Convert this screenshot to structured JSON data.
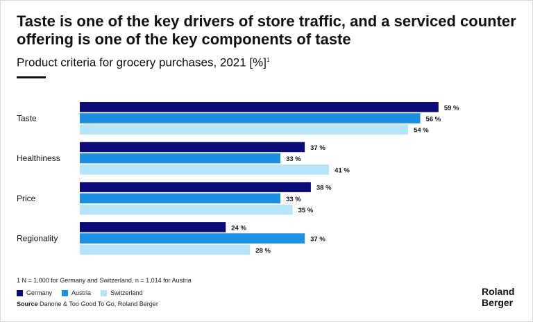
{
  "chart_data": {
    "type": "bar",
    "orientation": "horizontal",
    "title": "Taste is one of the key drivers of store traffic, and a serviced counter offering is one of the key components of taste",
    "subtitle": "Product criteria for grocery purchases, 2021 [%]",
    "subtitle_sup": "1",
    "categories": [
      "Taste",
      "Healthiness",
      "Price",
      "Regionality"
    ],
    "series": [
      {
        "name": "Germany",
        "color": "#0a0a78",
        "values": [
          59,
          37,
          38,
          24
        ]
      },
      {
        "name": "Austria",
        "color": "#1a8fe3",
        "values": [
          56,
          33,
          33,
          37
        ]
      },
      {
        "name": "Switzerland",
        "color": "#b8e4fb",
        "values": [
          54,
          41,
          35,
          28
        ]
      }
    ],
    "value_suffix": " %",
    "xlim": [
      0,
      60
    ],
    "grid": false,
    "legend": "bottom-left"
  },
  "footnote": "1 N = 1,000 for Germany and Switzerland, n = 1,014 for Austria",
  "source": {
    "label": "Source",
    "text": "Danone & Too Good To Go, Roland Berger"
  },
  "logo": {
    "line1": "Roland",
    "line2": "Berger"
  }
}
